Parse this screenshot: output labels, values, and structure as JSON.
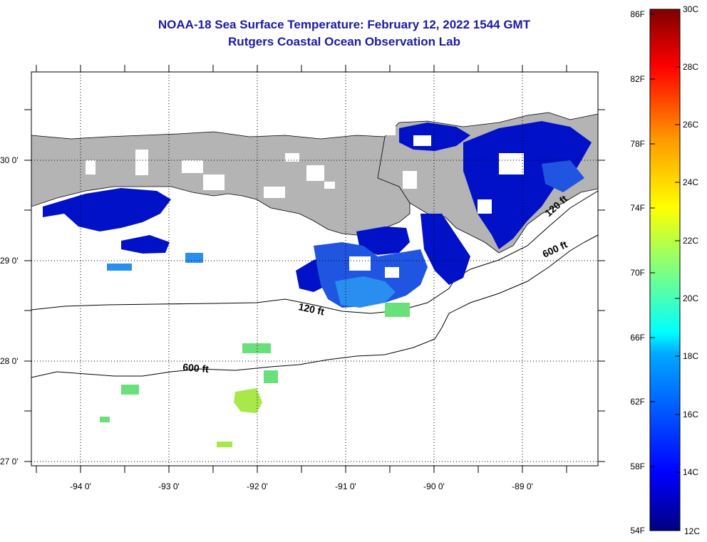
{
  "header": {
    "title": "NOAA-18 Sea Surface Temperature:  February 12, 2022 1544 GMT",
    "subtitle": "Rutgers Coastal Ocean Observation Lab"
  },
  "map": {
    "longitude_labels": [
      "-94 0'",
      "-93 0'",
      "-92 0'",
      "-91 0'",
      "-90 0'",
      "-89 0'"
    ],
    "latitude_labels": [
      "30 0'",
      "29 0'",
      "28 0'",
      "27 0'"
    ],
    "contour_labels": [
      "120 ft",
      "600 ft",
      "120 ft",
      "600 ft"
    ],
    "colors": {
      "land": "#b4b4b4",
      "ocean": "#ffffff",
      "cloud": "#ffffff"
    }
  },
  "colorbar": {
    "fahrenheit_labels": [
      "86F",
      "82F",
      "78F",
      "74F",
      "70F",
      "66F",
      "62F",
      "58F",
      "54F"
    ],
    "celsius_labels": [
      "30C",
      "28C",
      "26C",
      "24C",
      "22C",
      "20C",
      "18C",
      "16C",
      "14C",
      "12C"
    ],
    "range_c": [
      12,
      30
    ],
    "range_f": [
      54,
      86
    ]
  }
}
